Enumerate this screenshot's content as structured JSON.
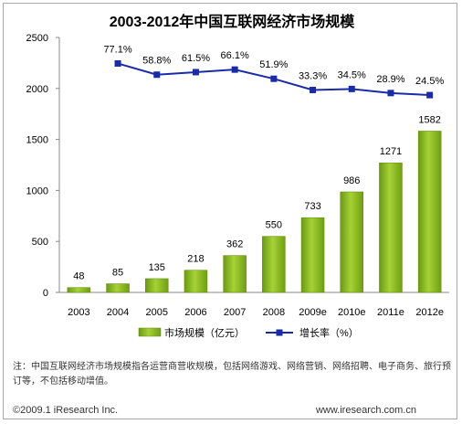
{
  "chart_data": {
    "type": "bar",
    "title": "2003-2012年中国互联网经济市场规模",
    "categories": [
      "2003",
      "2004",
      "2005",
      "2006",
      "2007",
      "2008",
      "2009e",
      "2010e",
      "2011e",
      "2012e"
    ],
    "series": [
      {
        "name": "市场规模（亿元）",
        "type": "bar",
        "values": [
          48,
          85,
          135,
          218,
          362,
          550,
          733,
          986,
          1271,
          1582
        ]
      },
      {
        "name": "增长率（%）",
        "type": "line",
        "values": [
          null,
          77.1,
          58.8,
          61.5,
          66.1,
          51.9,
          33.3,
          34.5,
          28.9,
          24.5
        ],
        "labels": [
          "",
          "77.1%",
          "58.8%",
          "61.5%",
          "66.1%",
          "51.9%",
          "33.3%",
          "34.5%",
          "28.9%",
          "24.5%"
        ],
        "plotted_y": [
          null,
          2245,
          2135,
          2160,
          2185,
          2095,
          1985,
          1995,
          1955,
          1935
        ]
      }
    ],
    "yticks": [
      0,
      500,
      1000,
      1500,
      2000,
      2500
    ],
    "ylim": [
      0,
      2500
    ],
    "legend_position": "bottom",
    "colors": {
      "bar": "#8fc31f",
      "bar_dark": "#5e8a0a",
      "line": "#1a2ba8"
    }
  },
  "note": "注：中国互联网经济市场规模指各运营商营收规模，包括网络游戏、网络营销、网络招聘、电子商务、旅行预订等，不包括移动增值。",
  "footer": {
    "left": "©2009.1 iResearch Inc.",
    "right": "www.iresearch.com.cn"
  }
}
